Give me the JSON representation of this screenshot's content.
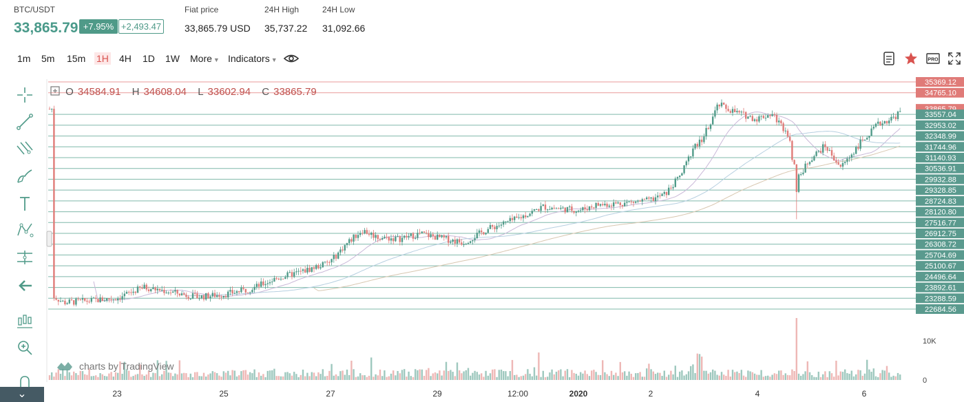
{
  "header": {
    "pair": "BTC/USDT",
    "price": "33,865.79",
    "change_pct": "+7.95%",
    "change_abs": "+2,493.47",
    "fiat_label": "Fiat price",
    "fiat_value": "33,865.79 USD",
    "high_label": "24H High",
    "high_value": "35,737.22",
    "low_label": "24H Low",
    "low_value": "31,092.66"
  },
  "toolbar": {
    "timeframes": [
      "1m",
      "5m",
      "15m",
      "1H",
      "4H",
      "1D",
      "1W"
    ],
    "active_timeframe": "1H",
    "more_label": "More",
    "indicators_label": "Indicators"
  },
  "ohlc": {
    "o_label": "O",
    "o": "34584.91",
    "h_label": "H",
    "h": "34608.04",
    "l_label": "L",
    "l": "33602.94",
    "c_label": "C",
    "c": "33865.79"
  },
  "watermark": "charts by TradingView",
  "colors": {
    "up": "#4f9a88",
    "down": "#e07b78",
    "accent_green": "#4f9a88",
    "accent_red": "#d9534f"
  },
  "chart_data": {
    "type": "line",
    "price_axis": [
      "35369.12",
      "34765.10",
      "33865.79",
      "33557.04",
      "32953.02",
      "32348.99",
      "31744.96",
      "31140.93",
      "30536.91",
      "29932.88",
      "29328.85",
      "28724.83",
      "28120.80",
      "27516.77",
      "26912.75",
      "26308.72",
      "25704.69",
      "25100.67",
      "24496.64",
      "23892.61",
      "23288.59",
      "22684.56"
    ],
    "price_range": [
      22684.56,
      35369.12
    ],
    "volume_axis": [
      "10K",
      "0"
    ],
    "x_ticks": [
      "23",
      "25",
      "27",
      "29",
      "12:00",
      "2020",
      "2",
      "4",
      "6"
    ],
    "series": [
      {
        "name": "BTC/USDT",
        "x_days": [
          21.8,
          22,
          22.5,
          23,
          23.5,
          24,
          24.5,
          25,
          25.5,
          26,
          26.5,
          27,
          27.3,
          27.6,
          27.9,
          28.3,
          28.7,
          29,
          29.5,
          30,
          30.5,
          31,
          31.3,
          31.7,
          32,
          32.5,
          33,
          33.3,
          33.6,
          33.8,
          34,
          34.3,
          34.6,
          35,
          35.3,
          35.6,
          35.8,
          36,
          36.3,
          36.6,
          37,
          37.3,
          37.6,
          37.9,
          38.2,
          38.5,
          38.7,
          38.9
        ],
        "close": [
          23400,
          23050,
          23150,
          23300,
          23900,
          23650,
          23350,
          23500,
          23800,
          24400,
          24800,
          25300,
          26300,
          27100,
          26700,
          26600,
          26900,
          26700,
          26400,
          27200,
          27700,
          28400,
          28300,
          28200,
          28500,
          28600,
          28750,
          29100,
          30200,
          31500,
          32200,
          34100,
          33700,
          33300,
          33600,
          32500,
          30000,
          31000,
          31800,
          30600,
          32100,
          33000,
          33400,
          34200,
          34600,
          35300,
          34600,
          33866
        ]
      }
    ]
  }
}
